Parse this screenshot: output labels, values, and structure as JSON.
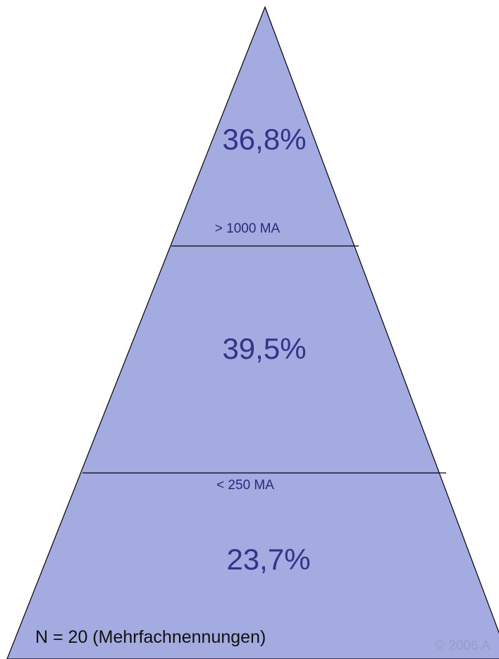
{
  "colors": {
    "fill": "#a4abe0",
    "stroke": "#000000",
    "percent_text": "#33338a",
    "label_text": "#2a2a7a",
    "copyright_text": "#9a9ac8"
  },
  "pyramid": {
    "top_segment": {
      "percent": "36,8%"
    },
    "middle_segment": {
      "percent": "39,5%"
    },
    "bottom_segment": {
      "percent": "23,7%"
    },
    "upper_boundary_label": "> 1000 MA",
    "lower_boundary_label": "< 250 MA"
  },
  "footnote": "N = 20 (Mehrfachnennungen)",
  "copyright": "© 2006 A"
}
